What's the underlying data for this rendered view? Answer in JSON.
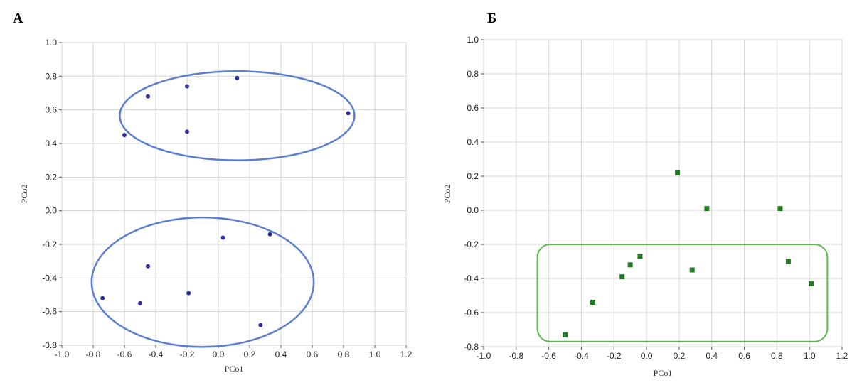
{
  "chart_data": [
    {
      "type": "scatter",
      "panel_label": "А",
      "xlabel": "PCo1",
      "ylabel": "PCo2",
      "xlim": [
        -1.0,
        1.2
      ],
      "ylim": [
        -0.8,
        1.0
      ],
      "grid": true,
      "x_ticks": [
        "-1.0",
        "-0.8",
        "-0.6",
        "-0.4",
        "-0.2",
        "0.0",
        "0.2",
        "0.4",
        "0.6",
        "0.8",
        "1.0",
        "1.2"
      ],
      "y_ticks": [
        "1.0",
        "0.8",
        "0.6",
        "0.4",
        "0.2",
        "0.0",
        "-0.2",
        "-0.4",
        "-0.6",
        "-0.8"
      ],
      "marker": "circle",
      "marker_color": "#2b2e9e",
      "points": [
        {
          "x": -0.45,
          "y": 0.68
        },
        {
          "x": -0.2,
          "y": 0.74
        },
        {
          "x": 0.12,
          "y": 0.79
        },
        {
          "x": -0.6,
          "y": 0.45
        },
        {
          "x": -0.2,
          "y": 0.47
        },
        {
          "x": 0.83,
          "y": 0.58
        },
        {
          "x": 0.03,
          "y": -0.16
        },
        {
          "x": 0.33,
          "y": -0.14
        },
        {
          "x": -0.45,
          "y": -0.33
        },
        {
          "x": -0.74,
          "y": -0.52
        },
        {
          "x": -0.5,
          "y": -0.55
        },
        {
          "x": -0.19,
          "y": -0.49
        },
        {
          "x": 0.27,
          "y": -0.68
        }
      ],
      "outline_color": "#5b7fcf",
      "groups": [
        {
          "shape": "ellipse",
          "x_range": [
            -0.63,
            0.87
          ],
          "y_range": [
            0.3,
            0.83
          ]
        },
        {
          "shape": "ellipse",
          "x_range": [
            -0.81,
            0.61
          ],
          "y_range": [
            -0.81,
            -0.04
          ]
        }
      ]
    },
    {
      "type": "scatter",
      "panel_label": "Б",
      "xlabel": "PCo1",
      "ylabel": "PCo2",
      "xlim": [
        -1.0,
        1.2
      ],
      "ylim": [
        -0.8,
        1.0
      ],
      "grid": true,
      "x_ticks": [
        "-1.0",
        "-0.8",
        "-0.6",
        "-0.4",
        "-0.2",
        "0.0",
        "0.2",
        "0.4",
        "0.6",
        "0.8",
        "1.0",
        "1.2"
      ],
      "y_ticks": [
        "1.0",
        "0.8",
        "0.6",
        "0.4",
        "0.2",
        "0.0",
        "-0.2",
        "-0.4",
        "-0.6",
        "-0.8"
      ],
      "marker": "square",
      "marker_color": "#1e7a1e",
      "points": [
        {
          "x": 0.19,
          "y": 0.22
        },
        {
          "x": 0.37,
          "y": 0.01
        },
        {
          "x": 0.82,
          "y": 0.01
        },
        {
          "x": -0.04,
          "y": -0.27
        },
        {
          "x": -0.1,
          "y": -0.32
        },
        {
          "x": -0.15,
          "y": -0.39
        },
        {
          "x": 0.28,
          "y": -0.35
        },
        {
          "x": 0.87,
          "y": -0.3
        },
        {
          "x": 1.01,
          "y": -0.43
        },
        {
          "x": -0.33,
          "y": -0.54
        },
        {
          "x": -0.5,
          "y": -0.73
        }
      ],
      "outline_color": "#5db84e",
      "groups": [
        {
          "shape": "rounded-rect",
          "x_range": [
            -0.67,
            1.11
          ],
          "y_range": [
            -0.77,
            -0.2
          ]
        }
      ]
    }
  ]
}
